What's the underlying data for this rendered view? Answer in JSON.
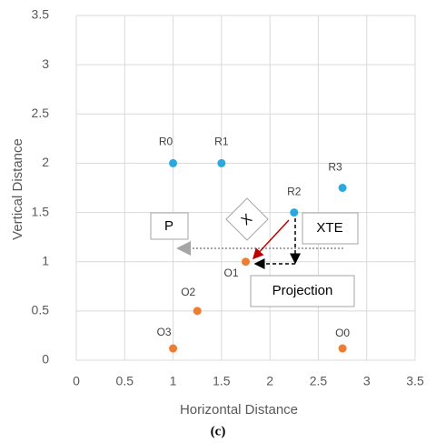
{
  "chart_data": {
    "type": "scatter",
    "xlabel": "Horizontal Distance",
    "ylabel": "Vertical Distance",
    "caption": "(c)",
    "xlim": [
      0,
      3.5
    ],
    "ylim": [
      0,
      3.5
    ],
    "xticks": [
      0,
      0.5,
      1,
      1.5,
      2,
      2.5,
      3,
      3.5
    ],
    "yticks": [
      0,
      0.5,
      1,
      1.5,
      2,
      2.5,
      3,
      3.5
    ],
    "grid": true,
    "series": [
      {
        "color": "#29a9e0",
        "x": [
          1,
          1.5,
          2.25,
          2.75
        ],
        "values": [
          2,
          2,
          1.5,
          1.75
        ],
        "labels": [
          "R0",
          "R1",
          "R2",
          "R3"
        ]
      },
      {
        "color": "#ed7d31",
        "x": [
          2.75,
          1.75,
          1.25,
          1
        ],
        "values": [
          0.12,
          1,
          0.5,
          0.12
        ],
        "labels": [
          "O0",
          "O1",
          "O2",
          "O3"
        ]
      }
    ],
    "annotations": [
      "P",
      "X",
      "XTE",
      "Projection"
    ]
  }
}
